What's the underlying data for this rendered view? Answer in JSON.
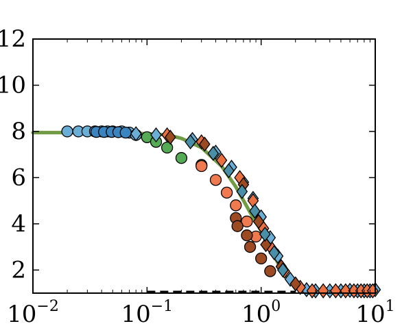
{
  "chart_data": {
    "type": "scatter",
    "title": "",
    "xlabel": "",
    "ylabel": "",
    "xscale": "log",
    "xlim": [
      0.01,
      10
    ],
    "ylim": [
      1,
      12
    ],
    "grid": false,
    "legend": "none",
    "axes": {
      "x_ticks": [
        {
          "value": 0.01,
          "label": "10^{-2}",
          "base": "10",
          "exp": "−2"
        },
        {
          "value": 0.1,
          "label": "10^{-1}",
          "base": "10",
          "exp": "−1"
        },
        {
          "value": 1,
          "label": "10^{0}",
          "base": "10",
          "exp": "0"
        },
        {
          "value": 10,
          "label": "10^{1}",
          "base": "10",
          "exp": "1"
        }
      ],
      "y_ticks": [
        {
          "value": 2,
          "label": "2"
        },
        {
          "value": 4,
          "label": "4"
        },
        {
          "value": 6,
          "label": "6"
        },
        {
          "value": 8,
          "label": "8"
        },
        {
          "value": 10,
          "label": "10"
        },
        {
          "value": 12,
          "label": "12"
        }
      ]
    },
    "lines": [
      {
        "name": "",
        "style": "solid",
        "color": "#e07040",
        "x": [
          0.01,
          0.03,
          0.06,
          0.1,
          0.15,
          0.2,
          0.3,
          0.45,
          0.6,
          0.8,
          1.0,
          1.3,
          1.6,
          2.0,
          2.5,
          3,
          5,
          10
        ],
        "y": [
          7.95,
          7.95,
          7.93,
          7.9,
          7.85,
          7.7,
          7.3,
          6.5,
          5.6,
          4.5,
          3.7,
          2.6,
          1.8,
          1.25,
          1.08,
          1.05,
          1.05,
          1.05
        ]
      },
      {
        "name": "",
        "style": "solid",
        "color": "#5aa040",
        "x": [
          0.01,
          0.03,
          0.06,
          0.1,
          0.15,
          0.2,
          0.3,
          0.45,
          0.6,
          0.8,
          1.0,
          1.3,
          1.6,
          2.0,
          2.5,
          3,
          5,
          10
        ],
        "y": [
          7.95,
          7.95,
          7.93,
          7.9,
          7.85,
          7.7,
          7.3,
          6.5,
          5.6,
          4.5,
          3.7,
          2.6,
          1.8,
          1.25,
          1.08,
          1.05,
          1.05,
          1.05
        ]
      },
      {
        "name": "",
        "style": "dashed",
        "color": "#000000",
        "x": [
          0.1,
          2.0
        ],
        "y": [
          1.05,
          1.05
        ]
      }
    ],
    "series": [
      {
        "name": "",
        "marker": "circle",
        "color": "#6aaed6",
        "x": [
          0.02,
          0.025,
          0.03,
          0.035,
          0.04,
          0.045,
          0.05,
          0.06,
          0.07,
          0.08
        ],
        "y": [
          8.0,
          8.0,
          8.0,
          8.0,
          8.0,
          8.0,
          8.0,
          8.0,
          7.95,
          7.85
        ]
      },
      {
        "name": "",
        "marker": "circle",
        "color": "#3a85c0",
        "x": [
          0.036,
          0.042,
          0.049,
          0.056,
          0.065
        ],
        "y": [
          7.98,
          7.98,
          7.98,
          7.97,
          7.95
        ]
      },
      {
        "name": "",
        "marker": "circle",
        "color": "#55aa55",
        "x": [
          0.1,
          0.12,
          0.15,
          0.2,
          0.3
        ],
        "y": [
          7.75,
          7.55,
          7.3,
          6.85,
          6.55
        ]
      },
      {
        "name": "",
        "marker": "circle",
        "color": "#f07a50",
        "x": [
          0.3,
          0.4,
          0.5,
          0.6,
          0.75,
          0.9
        ],
        "y": [
          6.5,
          5.9,
          5.35,
          4.8,
          4.1,
          3.45
        ]
      },
      {
        "name": "",
        "marker": "circle",
        "color": "#9c4a22",
        "x": [
          0.6,
          0.62,
          0.75,
          0.8,
          1.0,
          1.2
        ],
        "y": [
          4.25,
          3.9,
          3.5,
          3.0,
          2.5,
          1.95
        ]
      },
      {
        "name": "",
        "marker": "diamond",
        "color": "#6aaed6",
        "x": [
          0.08,
          0.12,
          0.25,
          0.4,
          0.55,
          0.7,
          0.85,
          1.0,
          1.2,
          1.4,
          1.8,
          2.5,
          3,
          4,
          5,
          6,
          7,
          8,
          9,
          10
        ],
        "y": [
          7.9,
          7.85,
          7.65,
          7.1,
          6.45,
          5.8,
          5.1,
          4.3,
          3.4,
          2.6,
          1.6,
          1.15,
          1.1,
          1.1,
          1.1,
          1.12,
          1.1,
          1.1,
          1.1,
          1.15
        ]
      },
      {
        "name": "",
        "marker": "diamond",
        "color": "#e97040",
        "x": [
          0.15,
          0.3,
          0.45,
          0.65,
          0.85,
          1.05,
          1.25,
          1.6,
          2.2,
          2.8,
          3.5,
          4.5,
          5.5,
          6.5,
          7.5,
          8.5,
          9.5
        ],
        "y": [
          7.85,
          7.55,
          6.75,
          6.0,
          5.0,
          3.8,
          2.9,
          1.95,
          1.25,
          1.1,
          1.1,
          1.1,
          1.1,
          1.1,
          1.1,
          1.1,
          1.1
        ]
      },
      {
        "name": "",
        "marker": "diamond",
        "color": "#9c4a22",
        "x": [
          0.16,
          0.32,
          0.7,
          0.95,
          1.1,
          1.5,
          2.0
        ],
        "y": [
          7.75,
          7.45,
          5.7,
          4.1,
          3.1,
          2.15,
          1.4
        ]
      },
      {
        "name": "",
        "marker": "diamond",
        "color": "#4a8fa8",
        "x": [
          0.24,
          0.38,
          0.52,
          0.68,
          0.88,
          1.08,
          1.3,
          1.55
        ],
        "y": [
          7.55,
          7.05,
          6.3,
          5.4,
          4.55,
          3.55,
          2.75,
          2.0
        ]
      }
    ]
  }
}
